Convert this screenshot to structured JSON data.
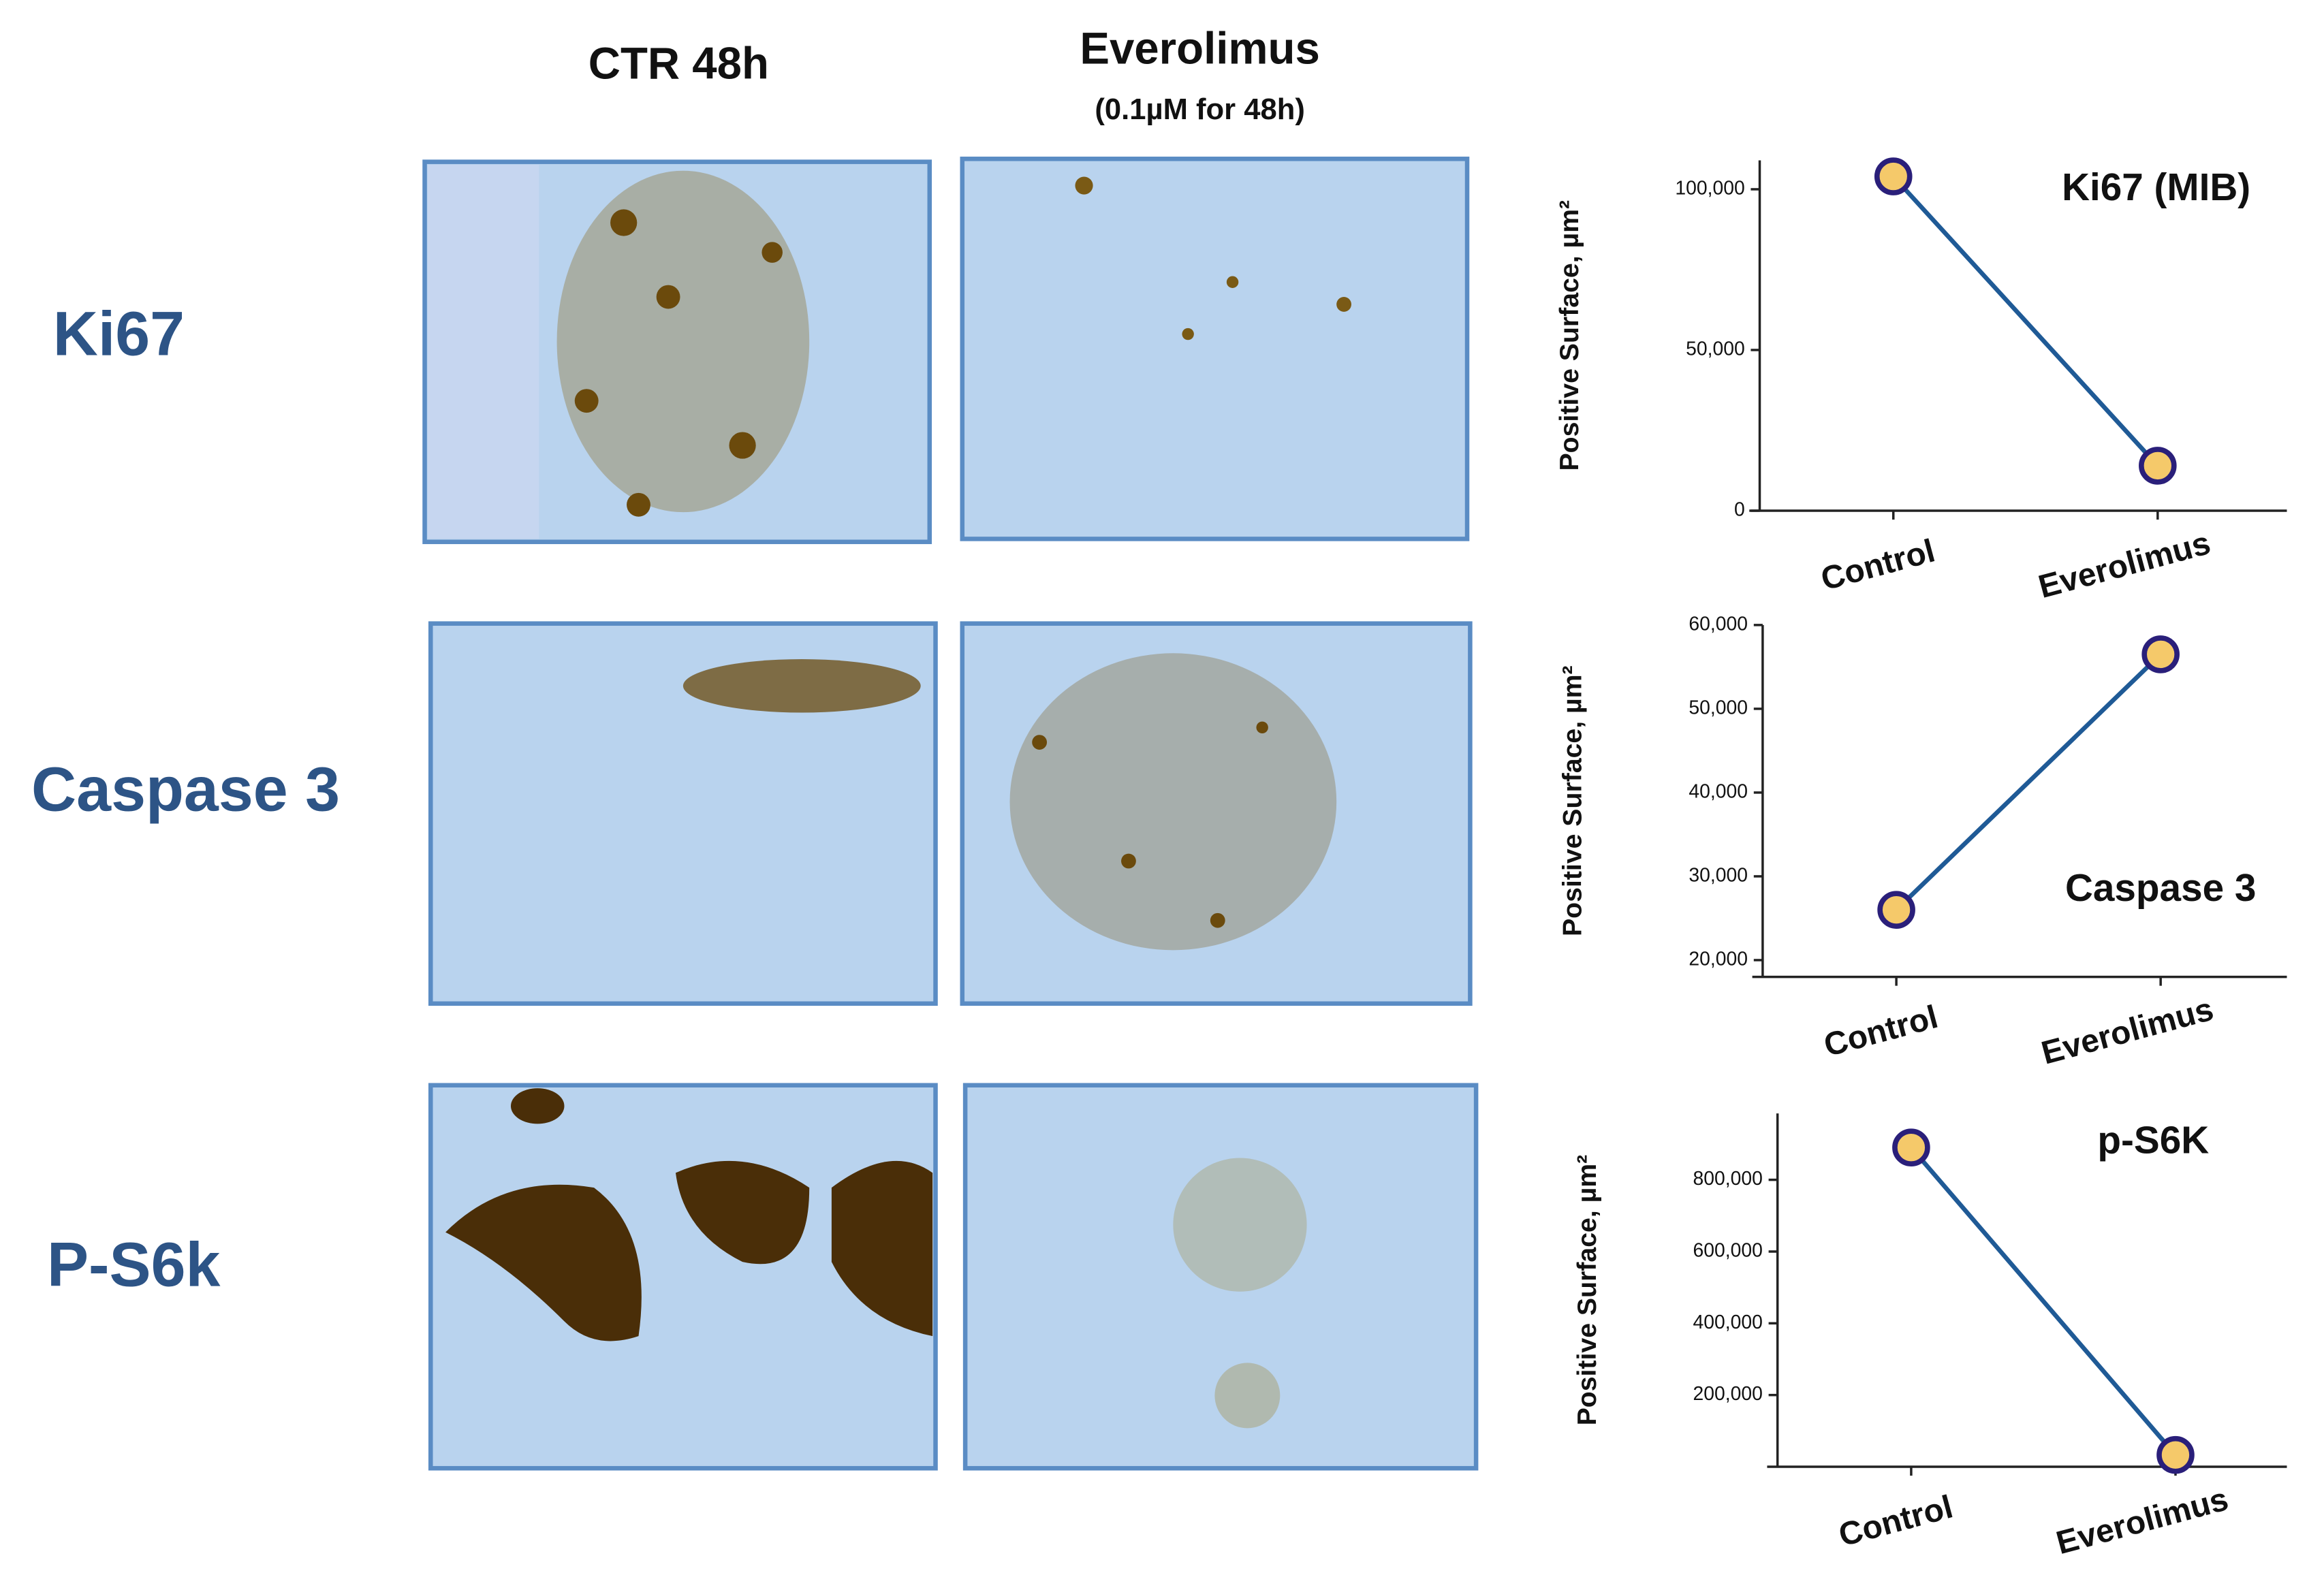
{
  "columns": [
    "CTR 48h",
    "Everolimus"
  ],
  "column_note": "(0.1µM  for 48h)",
  "rows": [
    "Ki67",
    "Caspase 3",
    "P-S6k"
  ],
  "chart_data": [
    {
      "type": "line",
      "title": "Ki67 (MIB)",
      "y_label": "Positive Surface, µm²",
      "categories": [
        "Control",
        "Everolimus"
      ],
      "values": [
        104000,
        14000
      ],
      "color": "#1f5a96",
      "marker_fill": "#f5c96a",
      "marker_edge": "#2a1f7a",
      "ylim": [
        0,
        109000
      ],
      "yticks": [
        0,
        {
          "value": 50000,
          "label": "50,000"
        },
        {
          "value": 100000,
          "label": "100,000"
        }
      ]
    },
    {
      "type": "line",
      "title": "Caspase 3",
      "y_label": "Positive Surface, µm²",
      "categories": [
        "Control",
        "Everolimus"
      ],
      "values": [
        26000,
        56500
      ],
      "color": "#1f5a96",
      "marker_fill": "#f5c96a",
      "marker_edge": "#2a1f7a",
      "ylim": [
        18000,
        60000
      ],
      "yticks": [
        {
          "value": 20000,
          "label": "20,000"
        },
        {
          "value": 30000,
          "label": "30,000"
        },
        {
          "value": 40000,
          "label": "40,000"
        },
        {
          "value": 50000,
          "label": "50,000"
        },
        {
          "value": 60000,
          "label": "60,000"
        }
      ]
    },
    {
      "type": "line",
      "title": "p-S6K",
      "y_label": "Positive Surface, µm²",
      "categories": [
        "Control",
        "Everolimus"
      ],
      "values": [
        890000,
        33000
      ],
      "color": "#1f5a96",
      "marker_fill": "#f5c96a",
      "marker_edge": "#2a1f7a",
      "ylim": [
        0,
        985000
      ],
      "yticks": [
        {
          "value": 200000,
          "label": "200,000"
        },
        {
          "value": 400000,
          "label": "400,000"
        },
        {
          "value": 600000,
          "label": "600,000"
        },
        {
          "value": 800000,
          "label": "800,000"
        }
      ]
    }
  ]
}
